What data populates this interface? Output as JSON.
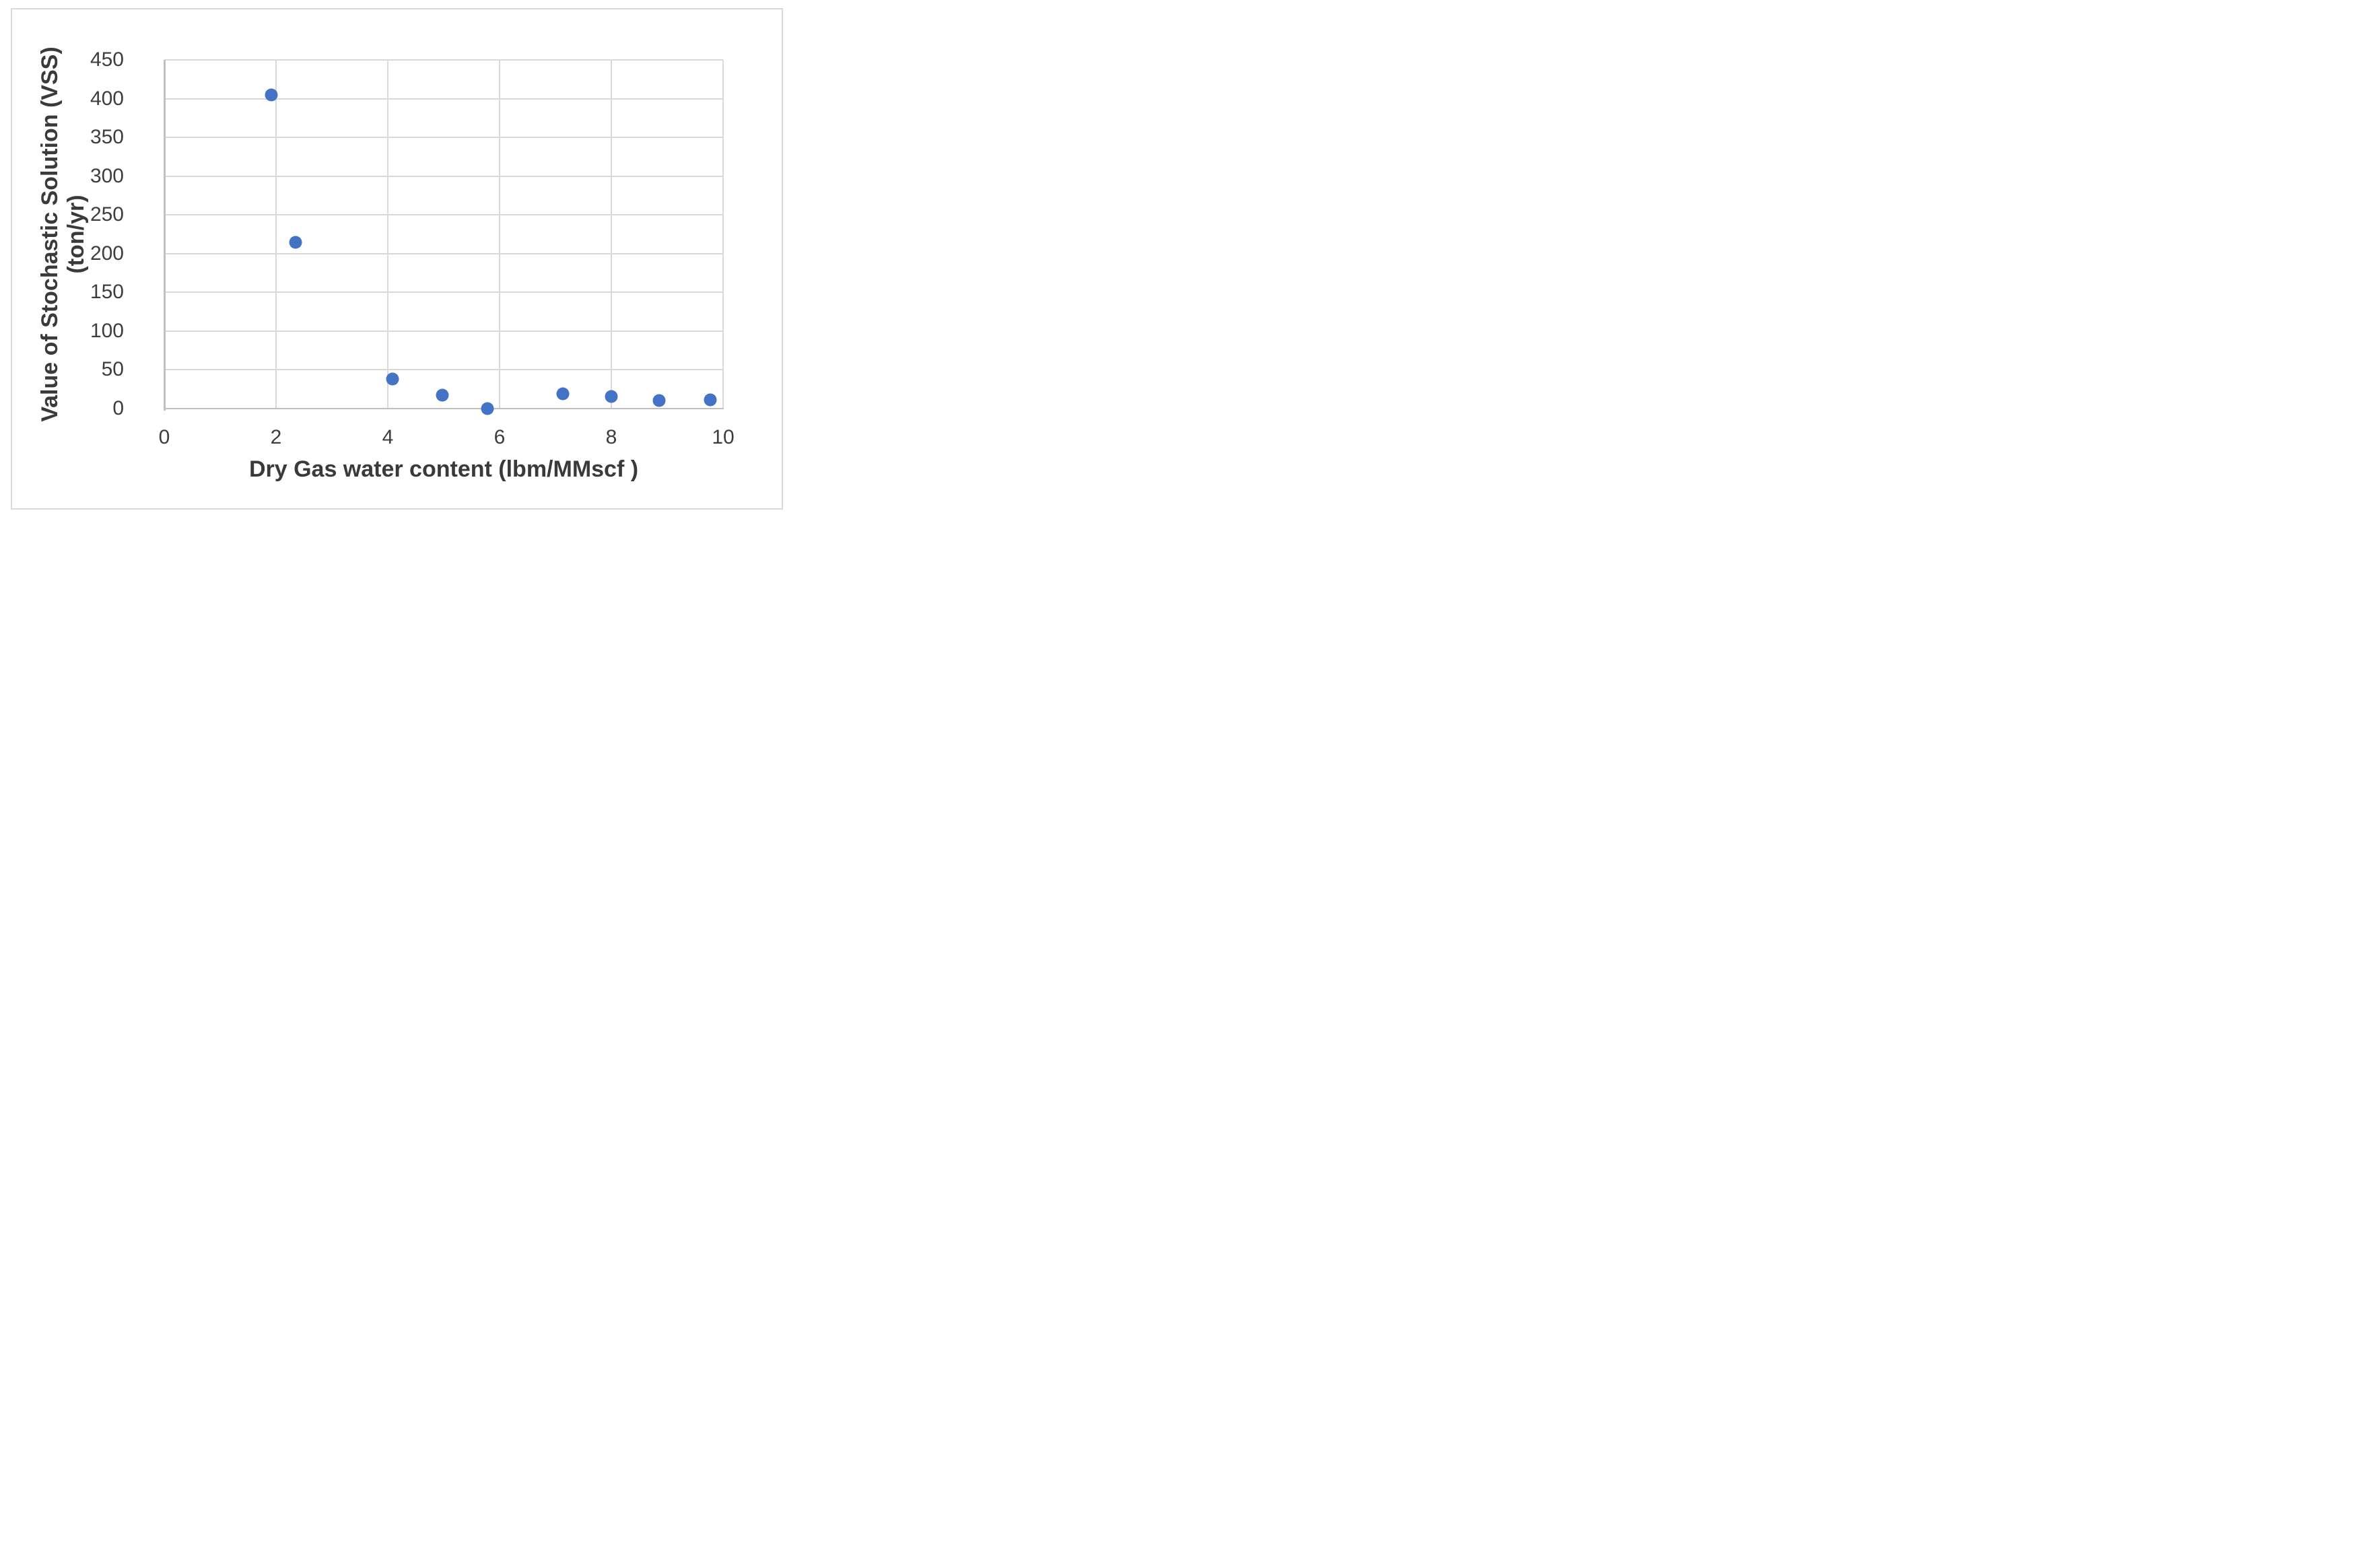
{
  "figure": {
    "background_color": "#ffffff",
    "frame_border_color": "#d9d9d9",
    "gridline_color": "#d9d9d9",
    "axis_line_color": "#bfbfbf",
    "tick_text_color": "#3d3d3d",
    "title_text_color": "#3a3a3a"
  },
  "chart_data": {
    "type": "scatter",
    "title": "",
    "xlabel": "Dry Gas water content (lbm/MMscf )",
    "ylabel": "Value of Stochastic Solution (VSS) (ton/yr)",
    "ylabel_lines": [
      "Value of Stochastic Solution (VSS)",
      "(ton/yr)"
    ],
    "xlim": [
      0,
      10
    ],
    "ylim": [
      0,
      450
    ],
    "x_ticks": [
      0,
      2,
      4,
      6,
      8,
      10
    ],
    "y_ticks": [
      0,
      50,
      100,
      150,
      200,
      250,
      300,
      350,
      400,
      450
    ],
    "grid": true,
    "legend_position": "none",
    "series": [
      {
        "name": "VSS",
        "marker": "circle",
        "marker_color": "#4472c4",
        "points": [
          {
            "x": 1.92,
            "y": 405
          },
          {
            "x": 2.35,
            "y": 215
          },
          {
            "x": 4.08,
            "y": 38
          },
          {
            "x": 4.98,
            "y": 17
          },
          {
            "x": 5.78,
            "y": 0
          },
          {
            "x": 7.13,
            "y": 19
          },
          {
            "x": 8.0,
            "y": 16
          },
          {
            "x": 8.86,
            "y": 10.5
          },
          {
            "x": 9.77,
            "y": 11
          }
        ]
      }
    ]
  }
}
